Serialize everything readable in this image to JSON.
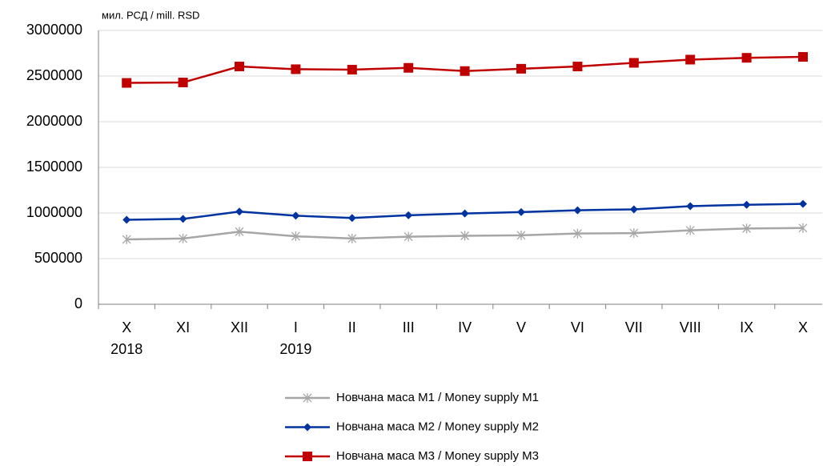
{
  "chart_data": {
    "type": "line",
    "unit_label": "мил. РСД / mill. RSD",
    "categories": [
      "X",
      "XI",
      "XII",
      "I",
      "II",
      "III",
      "IV",
      "V",
      "VI",
      "VII",
      "VIII",
      "IX",
      "X"
    ],
    "category_years": [
      "2018",
      null,
      null,
      "2019",
      null,
      null,
      null,
      null,
      null,
      null,
      null,
      null,
      null
    ],
    "ylim": [
      0,
      3000000
    ],
    "yticks": [
      0,
      500000,
      1000000,
      1500000,
      2000000,
      2500000,
      3000000
    ],
    "grid": true,
    "legend": "bottom",
    "series": [
      {
        "name": "Новчана маса М1 / Money supply M1",
        "color": "#a6a6a6",
        "marker": "asterisk",
        "values": [
          710000,
          720000,
          795000,
          745000,
          720000,
          740000,
          750000,
          755000,
          775000,
          780000,
          810000,
          830000,
          835000
        ]
      },
      {
        "name": "Новчана маса М2 / Money supply M2",
        "color": "#0033a0",
        "marker": "diamond",
        "values": [
          925000,
          935000,
          1015000,
          970000,
          945000,
          975000,
          995000,
          1010000,
          1030000,
          1040000,
          1075000,
          1090000,
          1100000
        ]
      },
      {
        "name": "Новчана маса М3 / Money supply M3",
        "color": "#c00000",
        "marker": "square",
        "values": [
          2425000,
          2430000,
          2605000,
          2575000,
          2570000,
          2590000,
          2555000,
          2580000,
          2605000,
          2645000,
          2680000,
          2700000,
          2710000
        ]
      }
    ]
  }
}
